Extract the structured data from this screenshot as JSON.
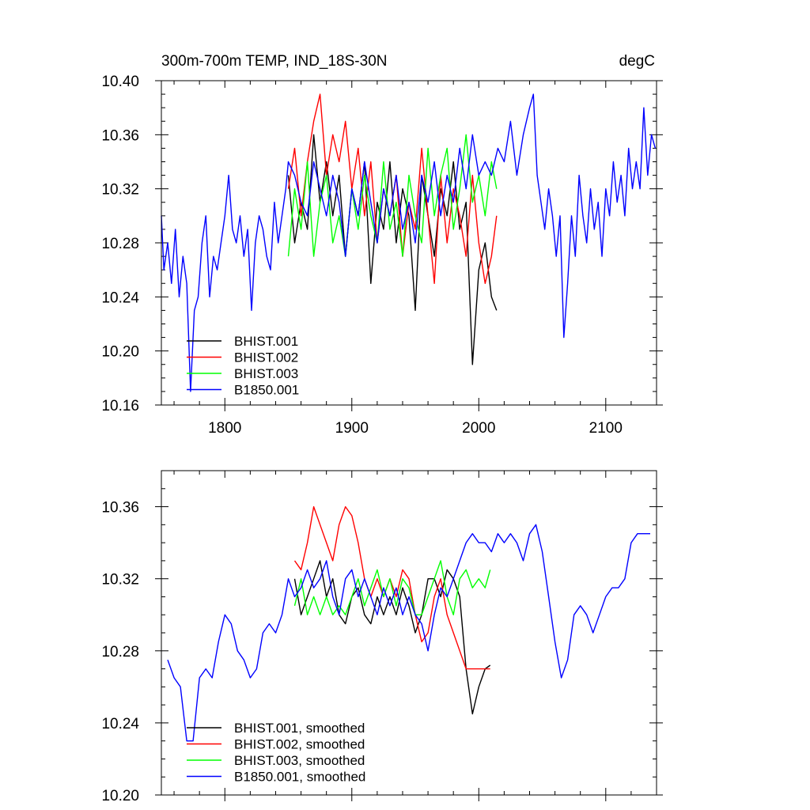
{
  "chart_data": [
    {
      "type": "line",
      "title": "300m-700m TEMP, IND_18S-30N",
      "units": "degC",
      "xlabel": "",
      "ylabel": "",
      "xlim": [
        1750,
        2140
      ],
      "ylim": [
        10.16,
        10.4
      ],
      "xticks": [
        1800,
        1900,
        2000,
        2100
      ],
      "xtick_labels": [
        "1800",
        "1900",
        "2000",
        "2100"
      ],
      "yticks": [
        10.16,
        10.2,
        10.24,
        10.28,
        10.32,
        10.36,
        10.4
      ],
      "ytick_labels": [
        "10.16",
        "10.20",
        "10.24",
        "10.28",
        "10.32",
        "10.36",
        "10.40"
      ],
      "legend": "bottom-left",
      "series": [
        {
          "name": "BHIST.001",
          "color": "#000000",
          "x": [
            1850,
            1855,
            1860,
            1865,
            1870,
            1875,
            1880,
            1885,
            1890,
            1895,
            1900,
            1905,
            1910,
            1915,
            1920,
            1925,
            1930,
            1935,
            1940,
            1945,
            1950,
            1955,
            1960,
            1965,
            1970,
            1975,
            1980,
            1985,
            1990,
            1995,
            2000,
            2005,
            2010,
            2014
          ],
          "y": [
            10.33,
            10.28,
            10.31,
            10.29,
            10.36,
            10.31,
            10.34,
            10.3,
            10.33,
            10.27,
            10.32,
            10.3,
            10.34,
            10.25,
            10.31,
            10.29,
            10.34,
            10.28,
            10.32,
            10.3,
            10.23,
            10.33,
            10.3,
            10.27,
            10.32,
            10.3,
            10.34,
            10.29,
            10.31,
            10.19,
            10.26,
            10.28,
            10.24,
            10.23
          ]
        },
        {
          "name": "BHIST.002",
          "color": "#ff0000",
          "x": [
            1850,
            1855,
            1860,
            1865,
            1870,
            1875,
            1880,
            1885,
            1890,
            1895,
            1900,
            1905,
            1910,
            1915,
            1920,
            1925,
            1930,
            1935,
            1940,
            1945,
            1950,
            1955,
            1960,
            1965,
            1970,
            1975,
            1980,
            1985,
            1990,
            1995,
            2000,
            2005,
            2010,
            2014
          ],
          "y": [
            10.32,
            10.35,
            10.3,
            10.34,
            10.37,
            10.39,
            10.33,
            10.36,
            10.34,
            10.37,
            10.32,
            10.35,
            10.3,
            10.34,
            10.28,
            10.32,
            10.3,
            10.33,
            10.27,
            10.31,
            10.29,
            10.35,
            10.3,
            10.25,
            10.33,
            10.28,
            10.32,
            10.3,
            10.27,
            10.33,
            10.28,
            10.25,
            10.27,
            10.3
          ]
        },
        {
          "name": "BHIST.003",
          "color": "#00ff00",
          "x": [
            1850,
            1855,
            1860,
            1865,
            1870,
            1875,
            1880,
            1885,
            1890,
            1895,
            1900,
            1905,
            1910,
            1915,
            1920,
            1925,
            1930,
            1935,
            1940,
            1945,
            1950,
            1955,
            1960,
            1965,
            1970,
            1975,
            1980,
            1985,
            1990,
            1995,
            2000,
            2005,
            2010,
            2014
          ],
          "y": [
            10.27,
            10.32,
            10.29,
            10.34,
            10.27,
            10.31,
            10.33,
            10.28,
            10.3,
            10.27,
            10.32,
            10.29,
            10.33,
            10.3,
            10.28,
            10.34,
            10.29,
            10.31,
            10.27,
            10.33,
            10.3,
            10.28,
            10.35,
            10.3,
            10.33,
            10.35,
            10.29,
            10.32,
            10.36,
            10.31,
            10.33,
            10.3,
            10.34,
            10.32
          ]
        },
        {
          "name": "B1850.001",
          "color": "#0000ff",
          "x": [
            1750,
            1752,
            1755,
            1758,
            1761,
            1764,
            1767,
            1770,
            1773,
            1776,
            1779,
            1782,
            1785,
            1788,
            1791,
            1794,
            1797,
            1800,
            1803,
            1806,
            1809,
            1812,
            1815,
            1818,
            1821,
            1824,
            1827,
            1830,
            1833,
            1836,
            1839,
            1842,
            1845,
            1848,
            1850,
            1855,
            1860,
            1865,
            1870,
            1875,
            1880,
            1885,
            1890,
            1895,
            1900,
            1905,
            1910,
            1915,
            1920,
            1925,
            1930,
            1935,
            1940,
            1945,
            1950,
            1955,
            1960,
            1965,
            1970,
            1975,
            1980,
            1985,
            1990,
            1995,
            2000,
            2005,
            2010,
            2015,
            2020,
            2025,
            2030,
            2035,
            2040,
            2043,
            2046,
            2049,
            2052,
            2055,
            2058,
            2061,
            2064,
            2067,
            2070,
            2073,
            2076,
            2079,
            2082,
            2085,
            2088,
            2091,
            2094,
            2097,
            2100,
            2103,
            2106,
            2109,
            2112,
            2115,
            2118,
            2121,
            2124,
            2127,
            2130,
            2133,
            2136,
            2139
          ],
          "y": [
            10.3,
            10.26,
            10.28,
            10.25,
            10.29,
            10.24,
            10.27,
            10.25,
            10.17,
            10.23,
            10.24,
            10.28,
            10.3,
            10.24,
            10.27,
            10.26,
            10.28,
            10.3,
            10.33,
            10.29,
            10.28,
            10.3,
            10.27,
            10.29,
            10.23,
            10.28,
            10.3,
            10.29,
            10.27,
            10.26,
            10.31,
            10.28,
            10.3,
            10.32,
            10.34,
            10.33,
            10.31,
            10.3,
            10.34,
            10.32,
            10.3,
            10.33,
            10.31,
            10.27,
            10.32,
            10.3,
            10.34,
            10.31,
            10.28,
            10.32,
            10.3,
            10.33,
            10.29,
            10.31,
            10.28,
            10.33,
            10.31,
            10.34,
            10.3,
            10.33,
            10.31,
            10.35,
            10.32,
            10.36,
            10.33,
            10.34,
            10.33,
            10.35,
            10.34,
            10.37,
            10.33,
            10.36,
            10.38,
            10.39,
            10.33,
            10.31,
            10.29,
            10.32,
            10.3,
            10.27,
            10.3,
            10.21,
            10.25,
            10.3,
            10.27,
            10.33,
            10.3,
            10.28,
            10.32,
            10.29,
            10.31,
            10.27,
            10.32,
            10.3,
            10.34,
            10.31,
            10.33,
            10.3,
            10.35,
            10.32,
            10.34,
            10.32,
            10.38,
            10.33,
            10.36,
            10.35
          ]
        }
      ]
    },
    {
      "type": "line",
      "title": "",
      "xlabel": "",
      "ylabel": "",
      "xlim": [
        1750,
        2140
      ],
      "ylim": [
        10.2,
        10.38
      ],
      "xticks": [
        1800,
        1900,
        2000,
        2100
      ],
      "xtick_labels": [
        "",
        "",
        "",
        ""
      ],
      "yticks": [
        10.2,
        10.24,
        10.28,
        10.32,
        10.36
      ],
      "ytick_labels": [
        "10.20",
        "10.24",
        "10.28",
        "10.32",
        "10.36"
      ],
      "legend": "bottom-left",
      "series": [
        {
          "name": "BHIST.001, smoothed",
          "color": "#000000",
          "x": [
            1855,
            1860,
            1865,
            1870,
            1875,
            1880,
            1885,
            1890,
            1895,
            1900,
            1905,
            1910,
            1915,
            1920,
            1925,
            1930,
            1935,
            1940,
            1945,
            1950,
            1955,
            1960,
            1965,
            1970,
            1975,
            1980,
            1985,
            1990,
            1995,
            2000,
            2005,
            2009
          ],
          "y": [
            10.32,
            10.3,
            10.31,
            10.32,
            10.33,
            10.31,
            10.32,
            10.3,
            10.295,
            10.31,
            10.315,
            10.3,
            10.295,
            10.31,
            10.3,
            10.31,
            10.3,
            10.315,
            10.305,
            10.29,
            10.3,
            10.32,
            10.32,
            10.31,
            10.325,
            10.32,
            10.31,
            10.27,
            10.245,
            10.26,
            10.27,
            10.272
          ]
        },
        {
          "name": "BHIST.002, smoothed",
          "color": "#ff0000",
          "x": [
            1855,
            1860,
            1865,
            1870,
            1875,
            1880,
            1885,
            1890,
            1895,
            1900,
            1905,
            1910,
            1915,
            1920,
            1925,
            1930,
            1935,
            1940,
            1945,
            1950,
            1955,
            1960,
            1965,
            1970,
            1975,
            1980,
            1985,
            1990,
            1995,
            2000,
            2005,
            2009
          ],
          "y": [
            10.33,
            10.325,
            10.34,
            10.36,
            10.35,
            10.34,
            10.33,
            10.35,
            10.36,
            10.355,
            10.34,
            10.32,
            10.31,
            10.32,
            10.31,
            10.32,
            10.31,
            10.325,
            10.32,
            10.3,
            10.285,
            10.29,
            10.31,
            10.32,
            10.3,
            10.29,
            10.28,
            10.27,
            10.27,
            10.27,
            10.27,
            10.27
          ]
        },
        {
          "name": "BHIST.003, smoothed",
          "color": "#00ff00",
          "x": [
            1855,
            1860,
            1865,
            1870,
            1875,
            1880,
            1885,
            1890,
            1895,
            1900,
            1905,
            1910,
            1915,
            1920,
            1925,
            1930,
            1935,
            1940,
            1945,
            1950,
            1955,
            1960,
            1965,
            1970,
            1975,
            1980,
            1985,
            1990,
            1995,
            2000,
            2005,
            2009
          ],
          "y": [
            10.305,
            10.32,
            10.3,
            10.31,
            10.3,
            10.31,
            10.3,
            10.305,
            10.3,
            10.31,
            10.32,
            10.305,
            10.315,
            10.325,
            10.31,
            10.32,
            10.305,
            10.32,
            10.315,
            10.3,
            10.3,
            10.31,
            10.32,
            10.33,
            10.31,
            10.3,
            10.32,
            10.325,
            10.315,
            10.32,
            10.315,
            10.325
          ]
        },
        {
          "name": "B1850.001, smoothed",
          "color": "#0000ff",
          "x": [
            1755,
            1760,
            1765,
            1770,
            1775,
            1780,
            1785,
            1790,
            1795,
            1800,
            1805,
            1810,
            1815,
            1820,
            1825,
            1830,
            1835,
            1840,
            1845,
            1850,
            1855,
            1860,
            1865,
            1870,
            1875,
            1880,
            1885,
            1890,
            1895,
            1900,
            1905,
            1910,
            1915,
            1920,
            1925,
            1930,
            1935,
            1940,
            1945,
            1950,
            1955,
            1960,
            1965,
            1970,
            1975,
            1980,
            1985,
            1990,
            1995,
            2000,
            2005,
            2010,
            2015,
            2020,
            2025,
            2030,
            2035,
            2040,
            2045,
            2050,
            2055,
            2060,
            2065,
            2070,
            2075,
            2080,
            2085,
            2090,
            2095,
            2100,
            2105,
            2110,
            2115,
            2120,
            2125,
            2130,
            2135
          ],
          "y": [
            10.275,
            10.265,
            10.26,
            10.23,
            10.23,
            10.265,
            10.27,
            10.265,
            10.285,
            10.3,
            10.295,
            10.28,
            10.275,
            10.265,
            10.27,
            10.29,
            10.295,
            10.29,
            10.3,
            10.32,
            10.31,
            10.315,
            10.325,
            10.315,
            10.32,
            10.33,
            10.31,
            10.3,
            10.32,
            10.325,
            10.31,
            10.32,
            10.31,
            10.3,
            10.315,
            10.305,
            10.315,
            10.3,
            10.31,
            10.3,
            10.295,
            10.28,
            10.3,
            10.315,
            10.31,
            10.32,
            10.33,
            10.34,
            10.345,
            10.34,
            10.34,
            10.335,
            10.345,
            10.34,
            10.345,
            10.34,
            10.33,
            10.345,
            10.35,
            10.335,
            10.31,
            10.285,
            10.265,
            10.275,
            10.3,
            10.305,
            10.3,
            10.29,
            10.3,
            10.31,
            10.315,
            10.315,
            10.32,
            10.34,
            10.345,
            10.345,
            10.345
          ]
        }
      ]
    }
  ]
}
